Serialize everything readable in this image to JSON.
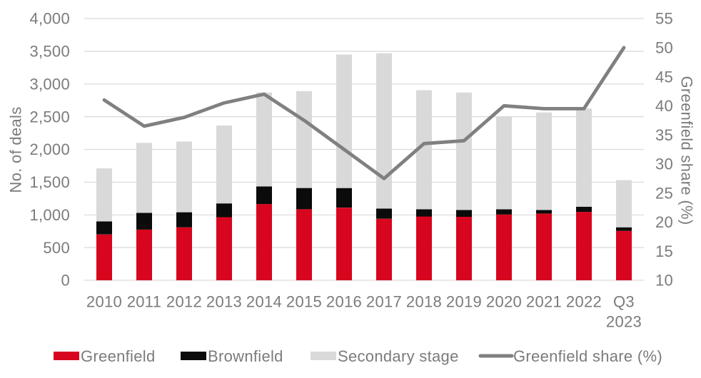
{
  "chart_data": {
    "type": "bar",
    "variant": "stacked-bars-with-secondary-axis-line",
    "title": "",
    "categories": [
      "2010",
      "2011",
      "2012",
      "2013",
      "2014",
      "2015",
      "2016",
      "2017",
      "2018",
      "2019",
      "2020",
      "2021",
      "2022",
      "Q3 2023"
    ],
    "bar_series": [
      {
        "name": "Greenfield",
        "color": "#d8051e",
        "values": [
          700,
          775,
          810,
          965,
          1165,
          1085,
          1110,
          940,
          975,
          970,
          1005,
          1020,
          1045,
          755
        ]
      },
      {
        "name": "Brownfield",
        "color": "#0b0b0b",
        "values": [
          200,
          255,
          230,
          210,
          270,
          325,
          300,
          155,
          110,
          105,
          80,
          55,
          80,
          55
        ]
      },
      {
        "name": "Secondary stage",
        "color": "#d9d9d9",
        "values": [
          810,
          1070,
          1080,
          1190,
          1435,
          1480,
          2040,
          2375,
          1820,
          1795,
          1415,
          1490,
          1500,
          720
        ]
      }
    ],
    "line_series": {
      "name": "Greenfield share (%)",
      "color": "#808080",
      "axis": "right",
      "values": [
        41,
        36.5,
        38,
        40.5,
        42,
        37.5,
        32.5,
        27.5,
        33.5,
        34,
        40,
        39.5,
        39.5,
        50
      ]
    },
    "left_axis": {
      "title": "No. of deals",
      "min": 0,
      "max": 4000,
      "step": 500,
      "tick_labels": [
        "0",
        "500",
        "1,000",
        "1,500",
        "2,000",
        "2,500",
        "3,000",
        "3,500",
        "4,000"
      ]
    },
    "right_axis": {
      "title": "Greenfield share (%)",
      "min": 10,
      "max": 55,
      "step": 5,
      "tick_labels": [
        "10",
        "15",
        "20",
        "25",
        "30",
        "35",
        "40",
        "45",
        "50",
        "55"
      ]
    },
    "grid": true,
    "legend_position": "bottom",
    "colors": {
      "background": "#ffffff",
      "text": "#7b7b7b",
      "gridline": "#d9d9d9"
    }
  }
}
